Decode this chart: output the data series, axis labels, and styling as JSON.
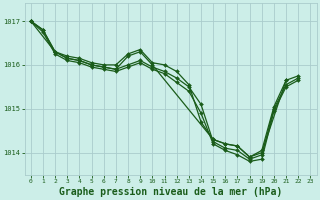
{
  "background_color": "#cceee8",
  "grid_color": "#aacccc",
  "line_color": "#1a5c1a",
  "marker_color": "#1a5c1a",
  "xlabel": "Graphe pression niveau de la mer (hPa)",
  "xlabel_fontsize": 7,
  "xlabel_color": "#1a5c1a",
  "tick_color": "#1a5c1a",
  "ylim": [
    1013.5,
    1017.4
  ],
  "xlim": [
    -0.5,
    23.5
  ],
  "yticks": [
    1014,
    1015,
    1016,
    1017
  ],
  "xticks": [
    0,
    1,
    2,
    3,
    4,
    5,
    6,
    7,
    8,
    9,
    10,
    11,
    12,
    13,
    14,
    15,
    16,
    17,
    18,
    19,
    20,
    21,
    22,
    23
  ],
  "series": [
    {
      "x": [
        0,
        1,
        2,
        3,
        4,
        5,
        6,
        7,
        8,
        9,
        10,
        11,
        12,
        13,
        14,
        15,
        16,
        17,
        18,
        19,
        20,
        21,
        22
      ],
      "y": [
        1017.0,
        1016.8,
        1016.3,
        1016.2,
        1016.15,
        1016.05,
        1016.0,
        1016.0,
        1016.25,
        1016.35,
        1016.05,
        1016.0,
        1015.85,
        1015.55,
        1014.7,
        1014.3,
        1014.2,
        1014.15,
        1013.9,
        1014.05,
        1015.05,
        1015.65,
        1015.75
      ]
    },
    {
      "x": [
        0,
        2,
        3,
        4,
        5,
        6,
        7,
        8,
        9,
        10,
        15,
        16,
        17,
        18,
        19,
        21
      ],
      "y": [
        1017.0,
        1016.3,
        1016.15,
        1016.1,
        1016.0,
        1015.95,
        1015.9,
        1016.2,
        1016.3,
        1016.0,
        1014.3,
        1014.2,
        1014.15,
        1013.9,
        1014.0,
        1015.65
      ]
    },
    {
      "x": [
        0,
        1,
        2,
        3,
        4,
        5,
        6,
        7,
        8,
        9,
        10,
        11,
        12,
        13,
        14,
        15,
        16,
        17,
        18,
        19,
        20,
        21,
        22
      ],
      "y": [
        1017.0,
        1016.8,
        1016.3,
        1016.15,
        1016.1,
        1016.0,
        1015.95,
        1015.9,
        1016.0,
        1016.1,
        1015.95,
        1015.85,
        1015.7,
        1015.5,
        1015.1,
        1014.25,
        1014.1,
        1014.05,
        1013.85,
        1013.95,
        1015.0,
        1015.55,
        1015.7
      ]
    },
    {
      "x": [
        0,
        1,
        2,
        3,
        4,
        5,
        6,
        7,
        8,
        9,
        10,
        11,
        12,
        13,
        14,
        15,
        16,
        17,
        18,
        19,
        20,
        21,
        22
      ],
      "y": [
        1017.0,
        1016.75,
        1016.25,
        1016.1,
        1016.05,
        1015.95,
        1015.9,
        1015.85,
        1015.95,
        1016.05,
        1015.9,
        1015.8,
        1015.6,
        1015.4,
        1014.9,
        1014.2,
        1014.05,
        1013.95,
        1013.8,
        1013.85,
        1014.95,
        1015.5,
        1015.65
      ]
    }
  ],
  "line_width": 0.9,
  "marker_size": 2.0
}
